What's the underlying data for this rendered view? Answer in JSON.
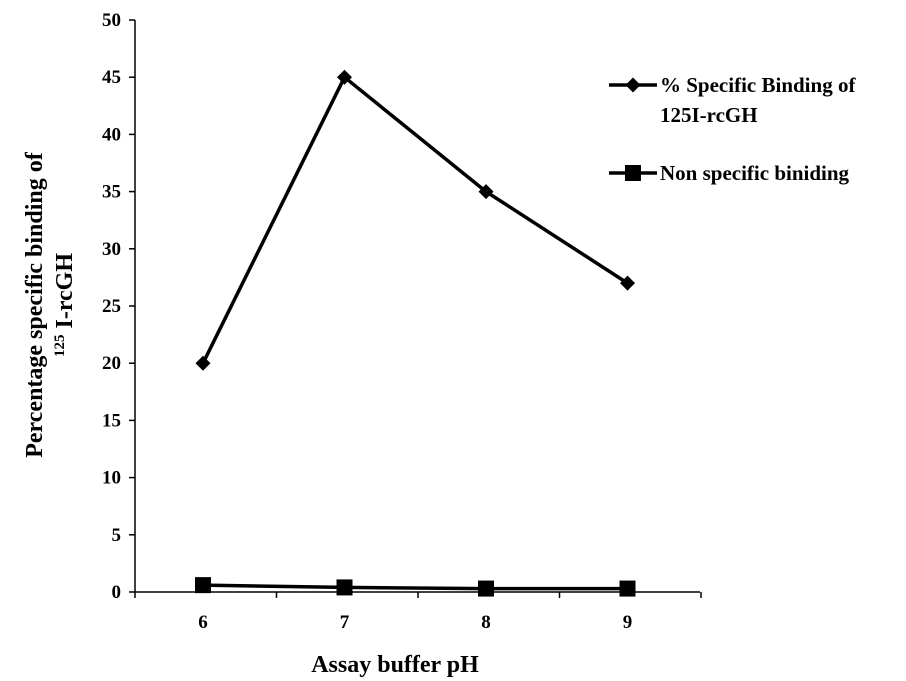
{
  "chart_data": {
    "type": "line",
    "x": [
      6,
      7,
      8,
      9
    ],
    "x_tick_labels": [
      "6",
      "7",
      "8",
      "9"
    ],
    "y_tick_labels": [
      "0",
      "5",
      "10",
      "15",
      "20",
      "25",
      "30",
      "35",
      "40",
      "45",
      "50"
    ],
    "ylim": [
      0,
      50
    ],
    "grid": false,
    "legend_position": "top-right",
    "xlabel": "Assay buffer pH",
    "ylabel": {
      "line1": "Percentage specific binding of",
      "superscript": "125",
      "line2": " I-rcGH"
    },
    "series": [
      {
        "name_lines": [
          "% Specific Binding of",
          "125I-rcGH"
        ],
        "values": [
          20,
          45,
          35,
          27
        ],
        "marker": "diamond",
        "color": "#000000"
      },
      {
        "name_lines": [
          "Non specific biniding"
        ],
        "values": [
          0.6,
          0.4,
          0.3,
          0.3
        ],
        "marker": "square",
        "color": "#000000"
      }
    ]
  }
}
